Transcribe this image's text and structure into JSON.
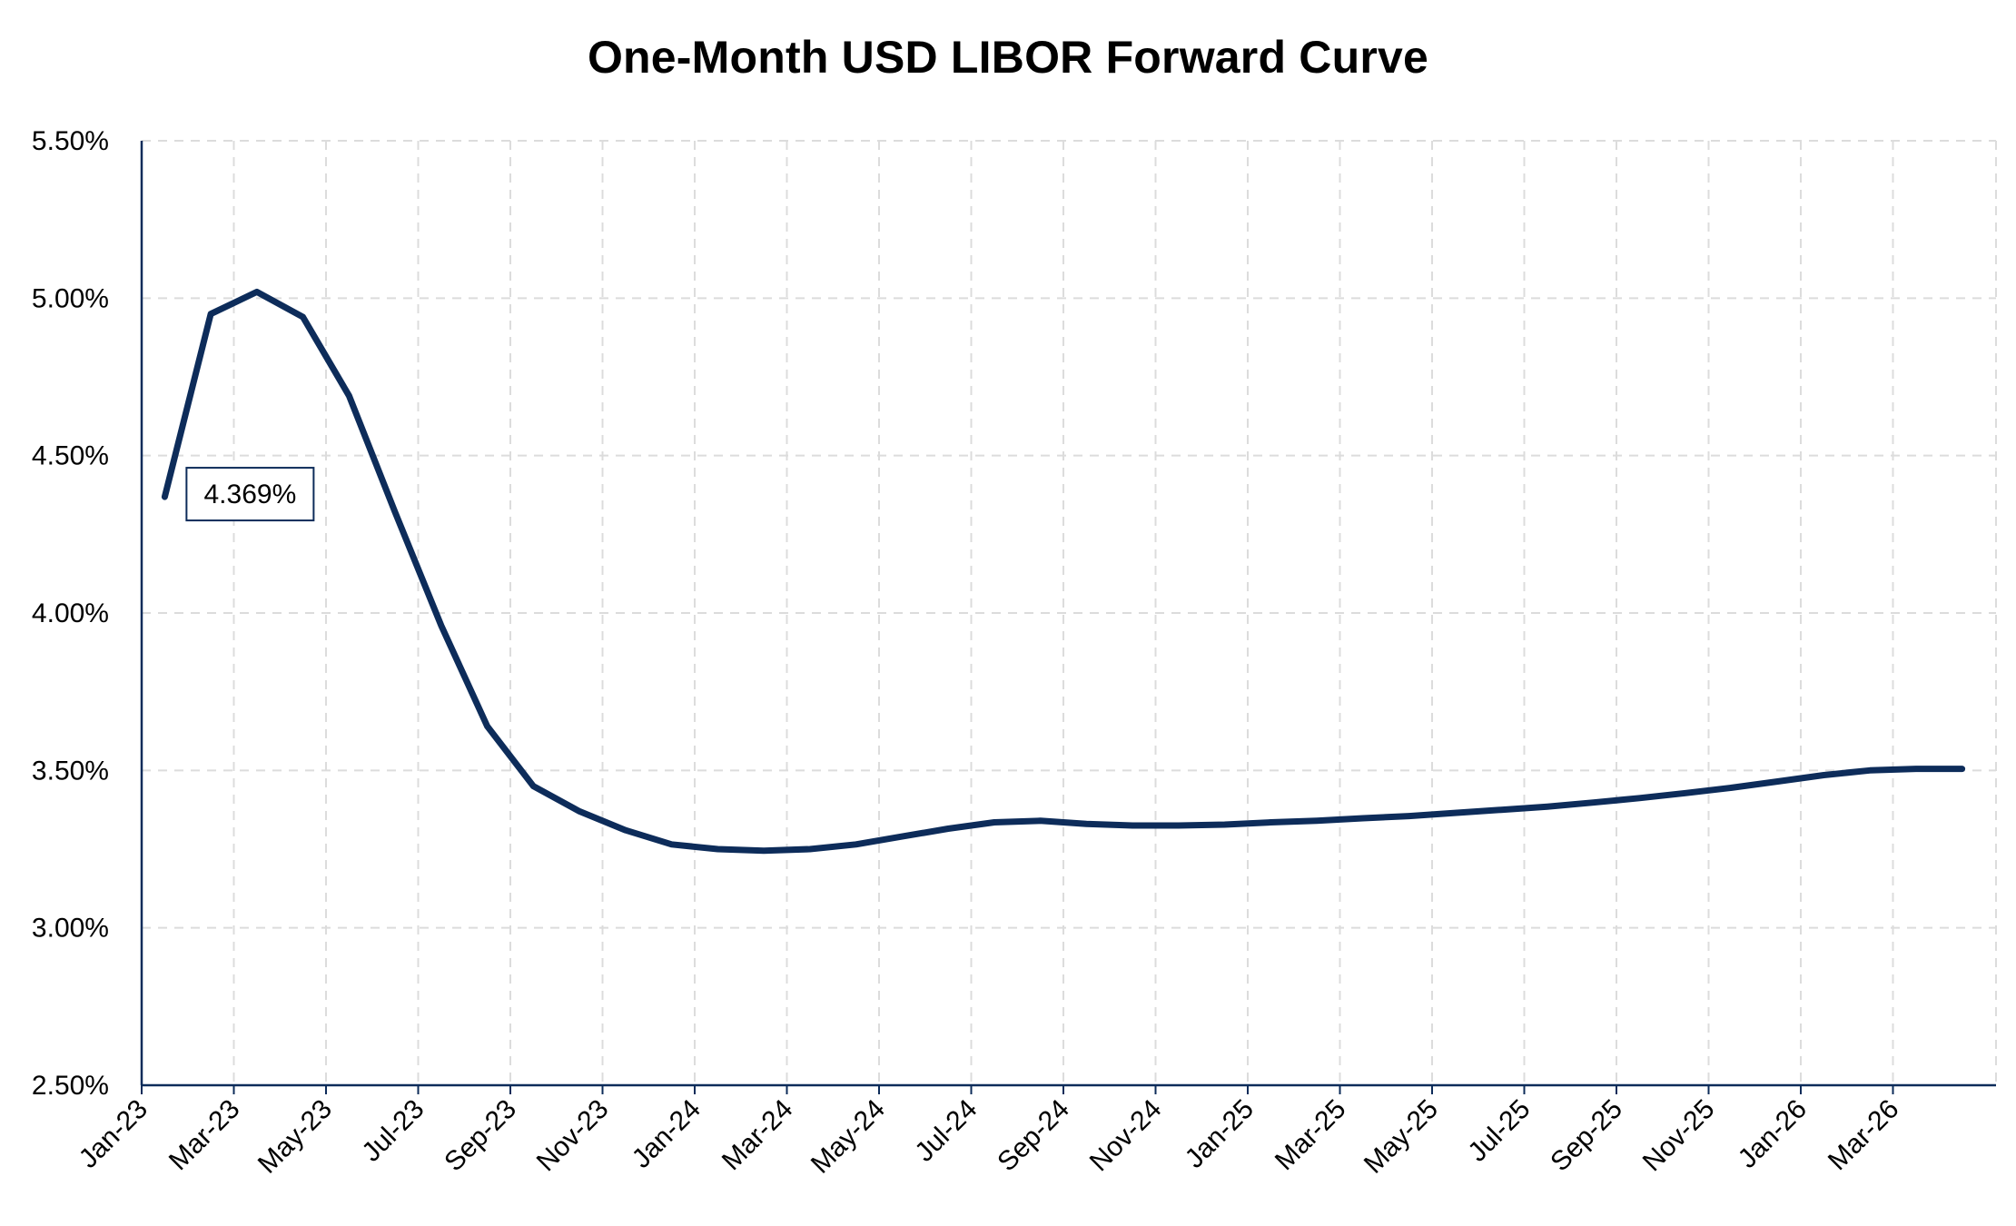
{
  "chart_data": {
    "type": "line",
    "title": "One-Month USD LIBOR Forward Curve",
    "xlabel": "",
    "ylabel": "",
    "ylim": [
      0.025,
      0.055
    ],
    "y_ticks": [
      0.025,
      0.03,
      0.035,
      0.04,
      0.045,
      0.05,
      0.055
    ],
    "y_tick_labels": [
      "2.50%",
      "3.00%",
      "3.50%",
      "4.00%",
      "4.50%",
      "5.00%",
      "5.50%"
    ],
    "x_tick_labels": [
      "Jan-23",
      "Mar-23",
      "May-23",
      "Jul-23",
      "Sep-23",
      "Nov-23",
      "Jan-24",
      "Mar-24",
      "May-24",
      "Jul-24",
      "Sep-24",
      "Nov-24",
      "Jan-25",
      "Mar-25",
      "May-25",
      "Jul-25",
      "Sep-25",
      "Nov-25",
      "Jan-26",
      "Mar-26"
    ],
    "grid": true,
    "series": [
      {
        "color": "#0d2c5a",
        "x": [
          "Jan-23",
          "Feb-23",
          "Mar-23",
          "Apr-23",
          "May-23",
          "Jun-23",
          "Jul-23",
          "Aug-23",
          "Sep-23",
          "Oct-23",
          "Nov-23",
          "Dec-23",
          "Jan-24",
          "Feb-24",
          "Mar-24",
          "Apr-24",
          "May-24",
          "Jun-24",
          "Jul-24",
          "Aug-24",
          "Sep-24",
          "Oct-24",
          "Nov-24",
          "Dec-24",
          "Jan-25",
          "Feb-25",
          "Mar-25",
          "Apr-25",
          "May-25",
          "Jun-25",
          "Jul-25",
          "Aug-25",
          "Sep-25",
          "Oct-25",
          "Nov-25",
          "Dec-25",
          "Jan-26",
          "Feb-26",
          "Mar-26",
          "Apr-26"
        ],
        "values": [
          0.04369,
          0.0495,
          0.0502,
          0.0494,
          0.0469,
          0.0432,
          0.0396,
          0.0364,
          0.0345,
          0.0337,
          0.0331,
          0.03265,
          0.0325,
          0.03245,
          0.0325,
          0.03265,
          0.0329,
          0.03315,
          0.03335,
          0.0334,
          0.0333,
          0.03325,
          0.03325,
          0.03328,
          0.03335,
          0.0334,
          0.03348,
          0.03355,
          0.03365,
          0.03375,
          0.03385,
          0.03398,
          0.03412,
          0.03428,
          0.03445,
          0.03465,
          0.03485,
          0.035,
          0.03505,
          0.03505
        ]
      }
    ],
    "annotations": [
      {
        "x": "Jan-23",
        "value": 0.04369,
        "text": "4.369%"
      }
    ]
  }
}
